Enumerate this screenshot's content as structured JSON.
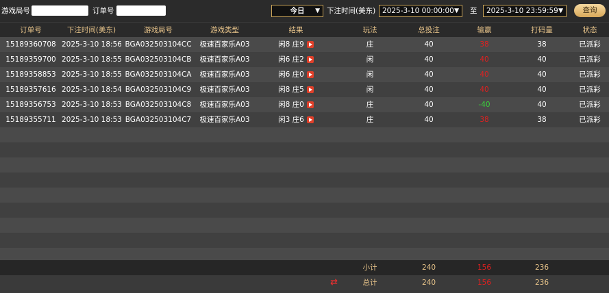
{
  "filters": {
    "round_label": "游戏局号",
    "order_label": "订单号",
    "range": "今日",
    "time_label": "下注时间(美东)",
    "start": "2025-3-10 00:00:00",
    "to": "至",
    "end": "2025-3-10 23:59:59",
    "query": "查询"
  },
  "table": {
    "columns": [
      "订单号",
      "下注时间(美东)",
      "游戏局号",
      "游戏类型",
      "结果",
      "玩法",
      "总投注",
      "输赢",
      "打码量",
      "状态"
    ],
    "rows": [
      [
        "15189360708",
        "2025-3-10 18:56",
        "BGA032503104CC",
        "极速百家乐A03",
        "闲8 庄9",
        "庄",
        40,
        38,
        38,
        "已派彩"
      ],
      [
        "15189359700",
        "2025-3-10 18:55",
        "BGA032503104CB",
        "极速百家乐A03",
        "闲6 庄2",
        "闲",
        40,
        40,
        40,
        "已派彩"
      ],
      [
        "15189358853",
        "2025-3-10 18:55",
        "BGA032503104CA",
        "极速百家乐A03",
        "闲6 庄0",
        "闲",
        40,
        40,
        40,
        "已派彩"
      ],
      [
        "15189357616",
        "2025-3-10 18:54",
        "BGA032503104C9",
        "极速百家乐A03",
        "闲8 庄5",
        "闲",
        40,
        40,
        40,
        "已派彩"
      ],
      [
        "15189356753",
        "2025-3-10 18:53",
        "BGA032503104C8",
        "极速百家乐A03",
        "闲8 庄0",
        "庄",
        40,
        -40,
        40,
        "已派彩"
      ],
      [
        "15189355711",
        "2025-3-10 18:53",
        "BGA032503104C7",
        "极速百家乐A03",
        "闲3 庄6",
        "庄",
        40,
        38,
        38,
        "已派彩"
      ]
    ]
  },
  "summary": [
    {
      "label": "小计",
      "bet": 240,
      "win": 156,
      "turnover": 236
    },
    {
      "label": "总计",
      "bet": 240,
      "win": 156,
      "turnover": 236
    }
  ]
}
